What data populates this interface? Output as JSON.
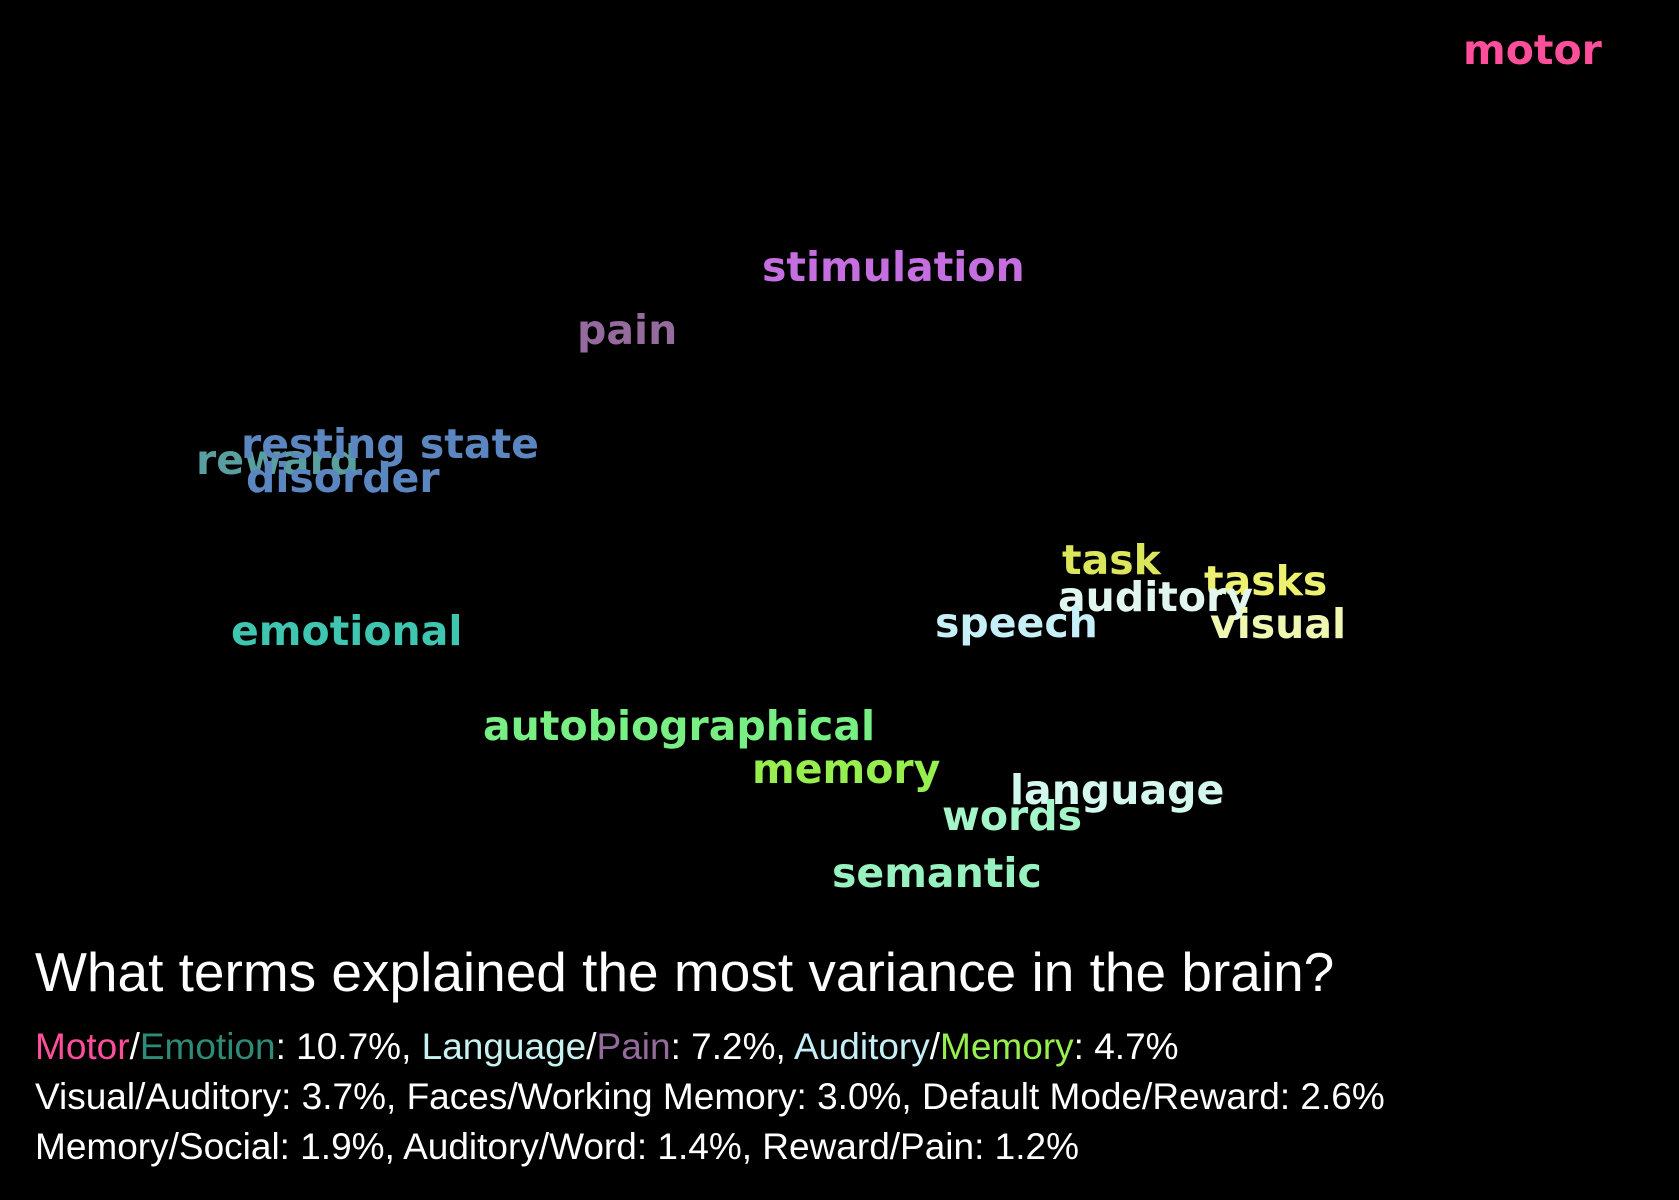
{
  "terms": [
    {
      "text": "motor",
      "color": "#ff4f9b"
    },
    {
      "text": "stimulation",
      "color": "#c46ee0"
    },
    {
      "text": "pain",
      "color": "#956b9e"
    },
    {
      "text": "reward",
      "color": "#5a9fa0"
    },
    {
      "text": "resting state",
      "color": "#5b86bf"
    },
    {
      "text": "disorder",
      "color": "#5b86bf"
    },
    {
      "text": "emotional",
      "color": "#3fc6b0"
    },
    {
      "text": "task",
      "color": "#dce65a"
    },
    {
      "text": "tasks",
      "color": "#eef070"
    },
    {
      "text": "auditory",
      "color": "#e2f6f0"
    },
    {
      "text": "speech",
      "color": "#c7eff8"
    },
    {
      "text": "visual",
      "color": "#f0f7b0"
    },
    {
      "text": "autobiographical",
      "color": "#78ef82"
    },
    {
      "text": "memory",
      "color": "#96ef4e"
    },
    {
      "text": "language",
      "color": "#d4f7ee"
    },
    {
      "text": "words",
      "color": "#a4f5c8"
    },
    {
      "text": "semantic",
      "color": "#98f2c0"
    }
  ],
  "caption": {
    "title": "What terms explained the most variance in the brain?",
    "line1": [
      {
        "text": "Motor",
        "color": "#ff4f9b"
      },
      {
        "text": "/",
        "color": "#ffffff"
      },
      {
        "text": "Emotion",
        "color": "#2f8a77"
      },
      {
        "text": ": 10.7%, ",
        "color": "#ffffff"
      },
      {
        "text": "Language",
        "color": "#c6f2f0"
      },
      {
        "text": "/",
        "color": "#ffffff"
      },
      {
        "text": "Pain",
        "color": "#956b9e"
      },
      {
        "text": ": 7.2%, ",
        "color": "#ffffff"
      },
      {
        "text": "Auditory",
        "color": "#c7eff8"
      },
      {
        "text": "/",
        "color": "#ffffff"
      },
      {
        "text": "Memory",
        "color": "#96ef4e"
      },
      {
        "text": ": 4.7%",
        "color": "#ffffff"
      }
    ],
    "line2": "Visual/Auditory: 3.7%, Faces/Working Memory: 3.0%, Default Mode/Reward: 2.6%",
    "line3": "Memory/Social: 1.9%, Auditory/Word: 1.4%, Reward/Pain: 1.2%"
  }
}
